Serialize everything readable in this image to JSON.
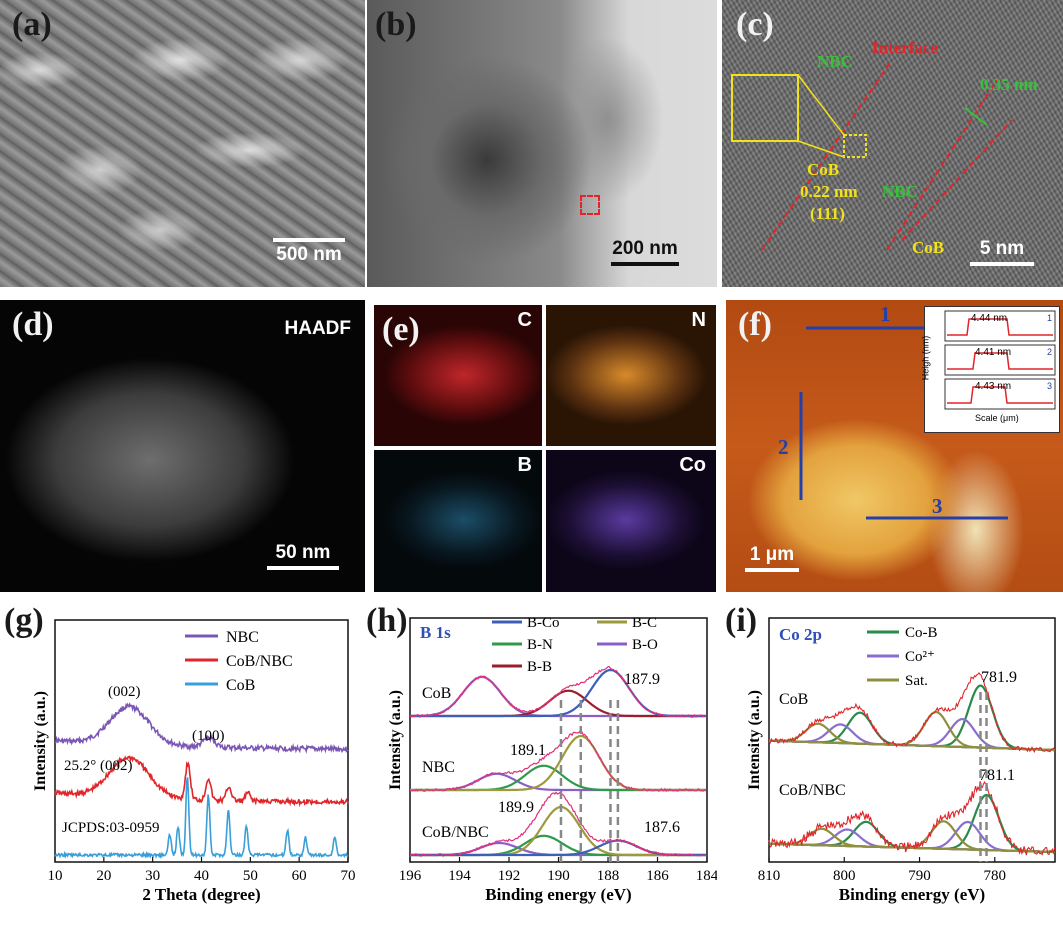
{
  "panels": {
    "a": {
      "label": "(a)",
      "scale": "500 nm"
    },
    "b": {
      "label": "(b)",
      "scale": "200 nm"
    },
    "c": {
      "label": "(c)",
      "scale": "5 nm",
      "annotations": {
        "nbc1": "NBC",
        "interface": "Interface",
        "spacing1": "0.35 nm",
        "cob1": "CoB",
        "spacing2": "0.22 nm",
        "plane": "(111)",
        "nbc2": "NBC",
        "cob2": "CoB"
      }
    },
    "d": {
      "label": "(d)",
      "scale": "50 nm",
      "mode": "HAADF"
    },
    "e": {
      "label": "(e)",
      "elements": [
        "C",
        "N",
        "B",
        "Co"
      ]
    },
    "f": {
      "label": "(f)",
      "scale": "1 μm",
      "lines": [
        "1",
        "2",
        "3"
      ],
      "inset": {
        "ylabel": "Heigh (nm)",
        "xlabel": "Scale (μm)",
        "heights": [
          "4.44 nm",
          "4.41 nm",
          "4.43 nm"
        ]
      }
    },
    "g": {
      "label": "(g)"
    },
    "h": {
      "label": "(h)"
    },
    "i": {
      "label": "(i)"
    }
  },
  "colors": {
    "nbc": "#7b57b5",
    "cob_nbc": "#e0262a",
    "cob": "#3a9fd8",
    "bco": "#3d5fb8",
    "bc": "#9c9a3b",
    "bn": "#2f9a48",
    "bo": "#8a5fc8",
    "bb": "#9b1f2a",
    "sat": "#8f8f3f",
    "cob_2p": "#2a8a4a",
    "co2": "#8a6ed0"
  },
  "chart_data": [
    {
      "id": "g",
      "type": "line",
      "title": "",
      "xlabel": "2 Theta (degree)",
      "ylabel": "Intensity (a.u.)",
      "xlim": [
        10,
        70
      ],
      "xticks": [
        "10",
        "20",
        "30",
        "40",
        "50",
        "60",
        "70"
      ],
      "legend": [
        "NBC",
        "CoB/NBC",
        "CoB"
      ],
      "annotations": [
        "(002)",
        "(100)",
        "25.2° (002)",
        "JCPDS:03-0959"
      ],
      "series": [
        {
          "name": "NBC",
          "peaks": [
            {
              "x": 25.2,
              "w": 4,
              "h": 1.0
            },
            {
              "x": 41.5,
              "w": 1.2,
              "h": 0.25
            }
          ]
        },
        {
          "name": "CoB/NBC",
          "peaks": [
            {
              "x": 25.2,
              "w": 4,
              "h": 1.0
            },
            {
              "x": 37.2,
              "w": 0.5,
              "h": 0.9
            },
            {
              "x": 41.4,
              "w": 0.5,
              "h": 0.55
            },
            {
              "x": 45.6,
              "w": 0.5,
              "h": 0.35
            },
            {
              "x": 49.5,
              "w": 0.5,
              "h": 0.2
            }
          ]
        },
        {
          "name": "CoB",
          "peaks": [
            {
              "x": 33.5,
              "w": 0.3,
              "h": 0.4
            },
            {
              "x": 35.2,
              "w": 0.3,
              "h": 0.55
            },
            {
              "x": 37.1,
              "w": 0.3,
              "h": 1.6
            },
            {
              "x": 41.4,
              "w": 0.3,
              "h": 1.2
            },
            {
              "x": 45.5,
              "w": 0.3,
              "h": 0.9
            },
            {
              "x": 49.2,
              "w": 0.3,
              "h": 0.6
            },
            {
              "x": 57.6,
              "w": 0.3,
              "h": 0.5
            },
            {
              "x": 61.3,
              "w": 0.3,
              "h": 0.35
            },
            {
              "x": 67.3,
              "w": 0.3,
              "h": 0.35
            }
          ]
        }
      ]
    },
    {
      "id": "h",
      "type": "line",
      "title": "B 1s",
      "xlabel": "Binding energy (eV)",
      "ylabel": "Intensity (a.u.)",
      "xlim": [
        196,
        184
      ],
      "xticks": [
        "196",
        "194",
        "192",
        "190",
        "188",
        "186",
        "184"
      ],
      "legend": [
        "B-Co",
        "B-C",
        "B-N",
        "B-O",
        "B-B"
      ],
      "sample_labels": [
        "CoB",
        "NBC",
        "CoB/NBC"
      ],
      "peak_labels": [
        "187.9",
        "189.1",
        "189.9",
        "187.6"
      ],
      "components": [
        {
          "sample": "CoB",
          "name": "B-O",
          "center": 193.1,
          "height": 0.85
        },
        {
          "sample": "CoB",
          "name": "B-B",
          "center": 189.6,
          "height": 0.55
        },
        {
          "sample": "CoB",
          "name": "B-Co",
          "center": 187.9,
          "height": 1.0
        },
        {
          "sample": "NBC",
          "name": "B-O",
          "center": 192.5,
          "height": 0.3
        },
        {
          "sample": "NBC",
          "name": "B-N",
          "center": 190.6,
          "height": 0.45
        },
        {
          "sample": "NBC",
          "name": "B-C",
          "center": 189.1,
          "height": 1.0
        },
        {
          "sample": "CoB/NBC",
          "name": "B-O",
          "center": 192.4,
          "height": 0.25
        },
        {
          "sample": "CoB/NBC",
          "name": "B-N",
          "center": 190.6,
          "height": 0.4
        },
        {
          "sample": "CoB/NBC",
          "name": "B-C",
          "center": 189.9,
          "height": 1.0
        },
        {
          "sample": "CoB/NBC",
          "name": "B-Co",
          "center": 187.6,
          "height": 0.3
        }
      ]
    },
    {
      "id": "i",
      "type": "line",
      "title": "Co 2p",
      "xlabel": "Binding energy (eV)",
      "ylabel": "Intensity (a.u.)",
      "xlim": [
        810,
        772
      ],
      "xticks": [
        "810",
        "800",
        "790",
        "780"
      ],
      "legend": [
        "Co-B",
        "Co²⁺",
        "Sat."
      ],
      "sample_labels": [
        "CoB",
        "CoB/NBC"
      ],
      "peak_labels": [
        "781.9",
        "781.1"
      ],
      "components": [
        {
          "sample": "CoB",
          "name": "Co-B",
          "center": 781.9,
          "height": 1.0
        },
        {
          "sample": "CoB",
          "name": "Co-B",
          "center": 797.9,
          "height": 0.5
        },
        {
          "sample": "CoB",
          "name": "Co2+",
          "center": 784.3,
          "height": 0.45
        },
        {
          "sample": "CoB",
          "name": "Co2+",
          "center": 800.5,
          "height": 0.3
        },
        {
          "sample": "CoB",
          "name": "Sat.",
          "center": 787.8,
          "height": 0.55
        },
        {
          "sample": "CoB",
          "name": "Sat.",
          "center": 803.5,
          "height": 0.3
        },
        {
          "sample": "CoB/NBC",
          "name": "Co-B",
          "center": 781.1,
          "height": 1.0
        },
        {
          "sample": "CoB/NBC",
          "name": "Co-B",
          "center": 797.1,
          "height": 0.45
        },
        {
          "sample": "CoB/NBC",
          "name": "Co2+",
          "center": 783.6,
          "height": 0.5
        },
        {
          "sample": "CoB/NBC",
          "name": "Co2+",
          "center": 799.6,
          "height": 0.3
        },
        {
          "sample": "CoB/NBC",
          "name": "Sat.",
          "center": 786.8,
          "height": 0.5
        },
        {
          "sample": "CoB/NBC",
          "name": "Sat.",
          "center": 803.0,
          "height": 0.3
        }
      ]
    }
  ]
}
